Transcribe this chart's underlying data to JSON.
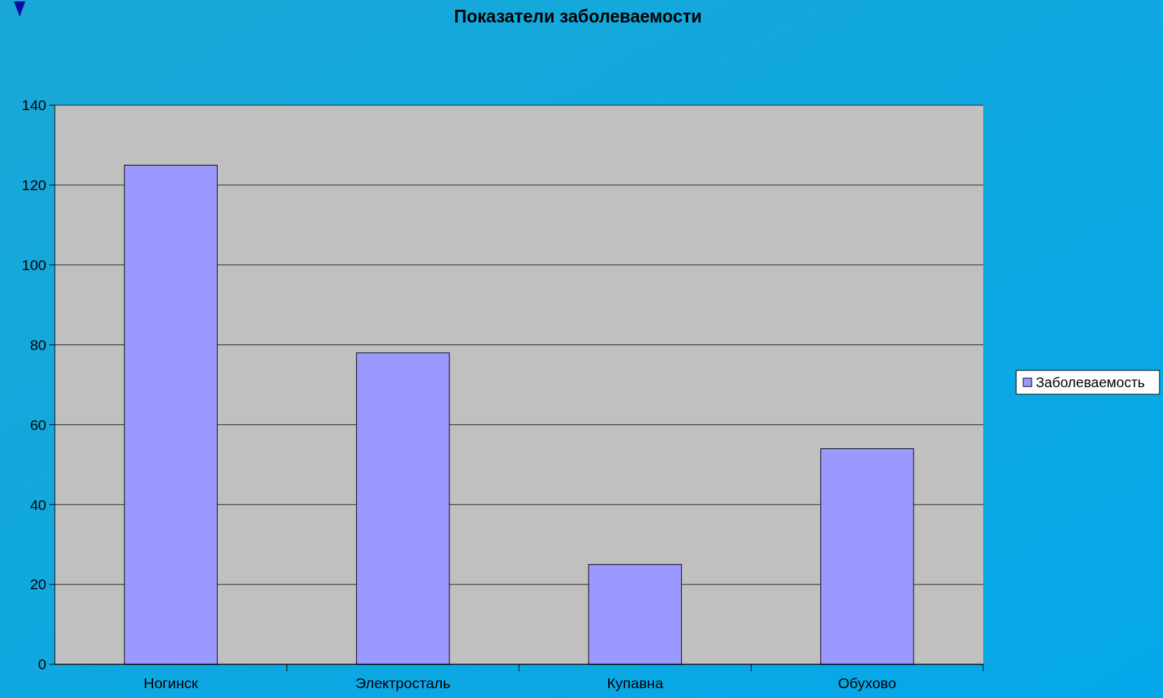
{
  "chart_data": {
    "type": "bar",
    "title": "Показатели заболеваемости",
    "categories": [
      "Ногинск",
      "Электросталь",
      "Купавна",
      "Обухово"
    ],
    "series": [
      {
        "name": "Заболеваемость",
        "color": "#9999ff",
        "values": [
          125,
          78,
          25,
          54
        ]
      }
    ],
    "ylim": [
      0,
      140
    ],
    "yticks": [
      0,
      20,
      40,
      60,
      80,
      100,
      120,
      140
    ],
    "grid": "y",
    "legend": "right"
  }
}
